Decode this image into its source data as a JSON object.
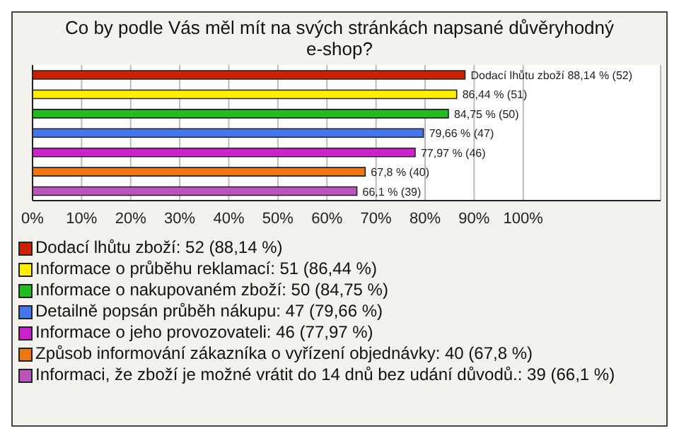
{
  "chart_data": {
    "type": "bar",
    "orientation": "horizontal",
    "stacked": true,
    "title": "Co by podle Vás měl mít na svých stránkách napsané důvěryhodný e-shop?",
    "categories": [
      null,
      null,
      null,
      null,
      null,
      null,
      null
    ],
    "series": [
      {
        "name": "Dodací lhůtu zboží: 52 (88,14 %)",
        "color": "#cc2200",
        "values": [
          88.14,
          null,
          null,
          null,
          null,
          null,
          null
        ],
        "value_labels": [
          "Dodací lhůtu zboží 88,14 % (52)",
          null,
          null,
          null,
          null,
          null,
          null
        ]
      },
      {
        "name": "Informace o průběhu reklamací: 51 (86,44 %)",
        "color": "#ffee00",
        "values": [
          null,
          86.44,
          null,
          null,
          null,
          null,
          null
        ],
        "value_labels": [
          null,
          "86,44 % (51)",
          null,
          null,
          null,
          null,
          null
        ]
      },
      {
        "name": "Informace o nakupovaném zboží: 50 (84,75 %)",
        "color": "#22bb22",
        "values": [
          null,
          null,
          84.75,
          null,
          null,
          null,
          null
        ],
        "value_labels": [
          null,
          null,
          "84,75 % (50)",
          null,
          null,
          null,
          null
        ]
      },
      {
        "name": "Detailně popsán průběh nákupu: 47 (79,66 %)",
        "color": "#4477ee",
        "values": [
          null,
          null,
          null,
          79.66,
          null,
          null,
          null
        ],
        "value_labels": [
          null,
          null,
          null,
          "79,66 % (47)",
          null,
          null,
          null
        ]
      },
      {
        "name": "Informace o jeho provozovateli: 46 (77,97 %)",
        "color": "#cc22cc",
        "values": [
          null,
          null,
          null,
          null,
          77.97,
          null,
          null
        ],
        "value_labels": [
          null,
          null,
          null,
          null,
          "77,97 % (46)",
          null,
          null
        ]
      },
      {
        "name": "Způsob informování zákazníka o vyřízení objednávky: 40 (67,8 %)",
        "color": "#ee7711",
        "values": [
          null,
          null,
          null,
          null,
          null,
          67.8,
          null
        ],
        "value_labels": [
          null,
          null,
          null,
          null,
          null,
          "67,8 % (40)",
          null
        ]
      },
      {
        "name": "Informaci, že zboží je možné vrátit do 14 dnů bez udání důvodů.: 39 (66,1 %)",
        "color": "#bb55bb",
        "values": [
          null,
          null,
          null,
          null,
          null,
          null,
          66.1
        ],
        "value_labels": [
          null,
          null,
          null,
          null,
          null,
          null,
          "66,1 % (39)"
        ]
      }
    ],
    "xlim": [
      0,
      128
    ],
    "xticks": [
      {
        "value": 0,
        "label": "0%"
      },
      {
        "value": 10,
        "label": "10%"
      },
      {
        "value": 20,
        "label": "20%"
      },
      {
        "value": 30,
        "label": "30%"
      },
      {
        "value": 40,
        "label": "40%"
      },
      {
        "value": 50,
        "label": "50%"
      },
      {
        "value": 60,
        "label": "60%"
      },
      {
        "value": 70,
        "label": "70%"
      },
      {
        "value": 80,
        "label": "80%"
      },
      {
        "value": 90,
        "label": "90%"
      },
      {
        "value": 100,
        "label": "100%"
      }
    ],
    "grid": "x",
    "legend": "bottom"
  }
}
